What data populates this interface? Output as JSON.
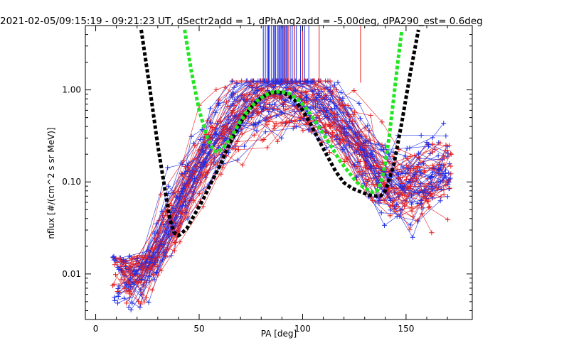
{
  "chart_data": {
    "type": "line",
    "title": "2021-02-05/09:15:19 - 09:21:23 UT, dSectr2add = 1, dPhAng2add = -5.00deg, dPA290_est=   0.6deg",
    "xlabel": "PA [deg]",
    "ylabel": "nflux [#/(cm^2 s sr MeV)]",
    "xlim": [
      -5,
      182
    ],
    "ylim": [
      0.0032,
      5.0
    ],
    "y_scale": "log",
    "xticks": [
      0,
      50,
      100,
      150
    ],
    "xtick_labels": [
      "0",
      "50",
      "100",
      "150"
    ],
    "yticks": [
      0.01,
      0.1,
      1.0
    ],
    "ytick_labels": [
      "0.01",
      "0.10",
      "1.00"
    ],
    "grid": false,
    "colors": {
      "red_sweeps": "#e61e1e",
      "blue_sweeps": "#1e2ee6",
      "fit_black": "#000000",
      "fit_green": "#22e622",
      "axes": "#000000"
    },
    "series": [
      {
        "color": "black",
        "style": "dashed-thick",
        "x": [
          22,
          26,
          30,
          34,
          36,
          38,
          40,
          44,
          48,
          52,
          56,
          60,
          64,
          68,
          72,
          76,
          80,
          84,
          88,
          92,
          96,
          100,
          104,
          108,
          112,
          116,
          120,
          124,
          128,
          132,
          136,
          138,
          140,
          144,
          148,
          152,
          156
        ],
        "y": [
          4.5,
          1.1,
          0.25,
          0.07,
          0.038,
          0.028,
          0.026,
          0.031,
          0.045,
          0.065,
          0.1,
          0.15,
          0.24,
          0.36,
          0.52,
          0.68,
          0.82,
          0.92,
          0.95,
          0.9,
          0.78,
          0.6,
          0.42,
          0.28,
          0.19,
          0.13,
          0.098,
          0.085,
          0.078,
          0.072,
          0.07,
          0.071,
          0.08,
          0.15,
          0.45,
          1.5,
          4.5
        ]
      },
      {
        "color": "green",
        "style": "dashed-thick",
        "x": [
          43,
          46,
          50,
          54,
          57,
          59,
          62,
          66,
          70,
          74,
          78,
          82,
          86,
          90,
          94,
          98,
          102,
          106,
          110,
          114,
          118,
          122,
          126,
          130,
          134,
          136,
          138,
          140,
          142,
          144,
          146,
          148
        ],
        "y": [
          4.5,
          1.7,
          0.6,
          0.3,
          0.22,
          0.21,
          0.24,
          0.32,
          0.46,
          0.62,
          0.76,
          0.88,
          0.95,
          0.96,
          0.9,
          0.78,
          0.62,
          0.46,
          0.33,
          0.24,
          0.17,
          0.13,
          0.1,
          0.085,
          0.077,
          0.08,
          0.1,
          0.16,
          0.33,
          0.8,
          2.0,
          4.5
        ]
      }
    ],
    "sweeps_note": "many overlapping red and blue PA sweep traces with + markers",
    "vertical_lines": {
      "blue_x": [
        81,
        82,
        83,
        83.5,
        84,
        85,
        86,
        86.5,
        87,
        88,
        88.5,
        89,
        89.5,
        90,
        90.5,
        91,
        91.5,
        92,
        92.5,
        93,
        94,
        95,
        96,
        97,
        99,
        101,
        103
      ],
      "red_x": [
        88,
        91,
        93,
        96,
        100,
        108,
        128
      ]
    }
  }
}
